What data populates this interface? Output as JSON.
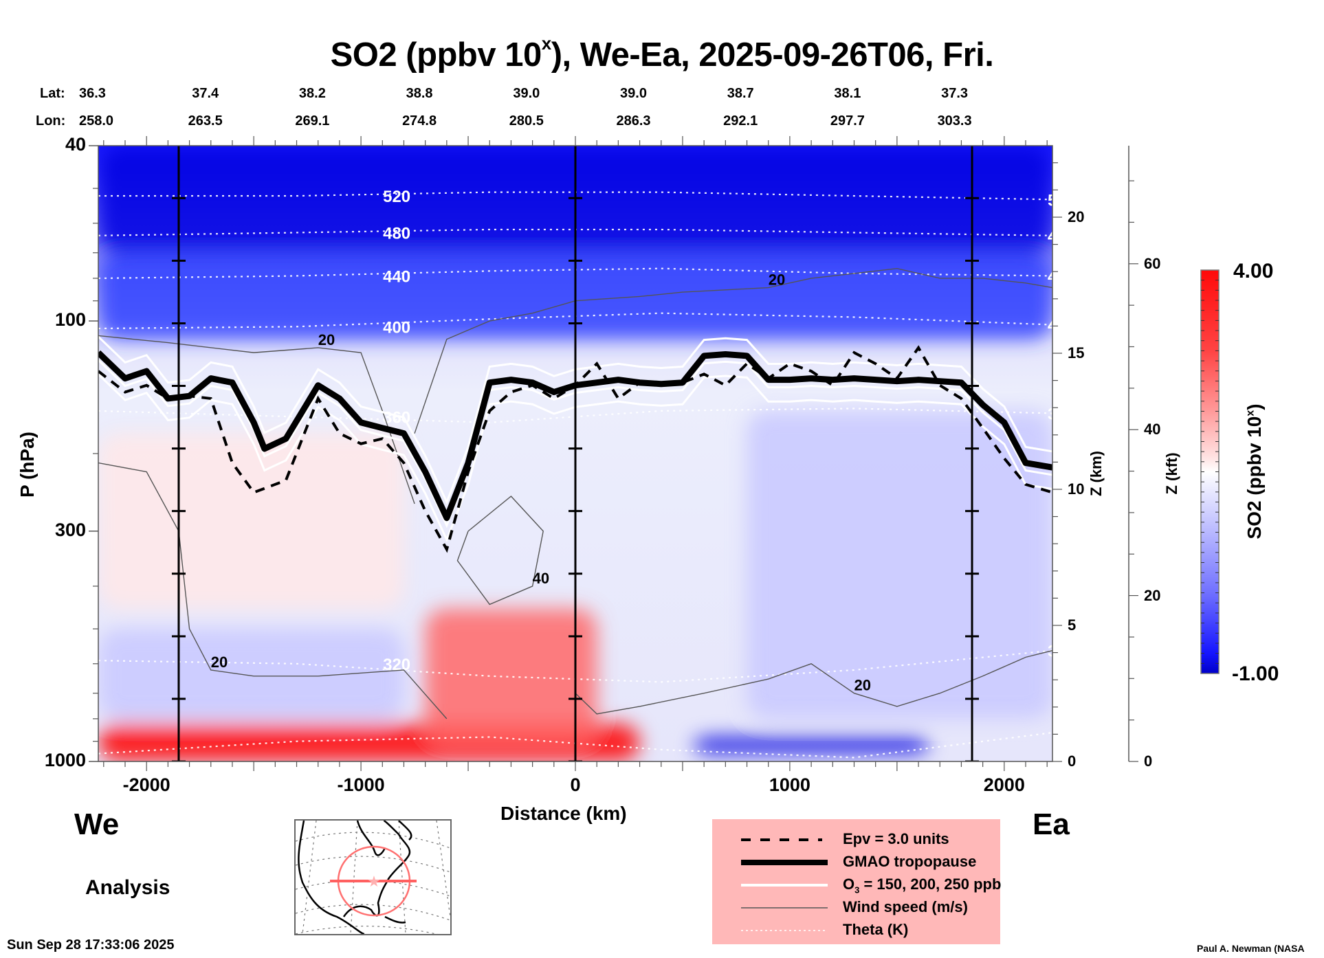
{
  "chart_data": {
    "type": "heatmap",
    "title": "SO2 (ppbv 10",
    "title_sup": "x",
    "title_rest": "), We-Ea, 2025-09-26T06, Fri.",
    "xlabel": "Distance (km)",
    "ylabel": "P (hPa)",
    "xlim": [
      -2225,
      2225
    ],
    "ylim_hpa": [
      1000,
      40
    ],
    "y_scale": "log",
    "x_ticks": [
      -2000,
      -1000,
      0,
      1000,
      2000
    ],
    "x_tick_labels": [
      "-2000",
      "-1000",
      "0",
      "1000",
      "2000"
    ],
    "y_ticks": [
      40,
      100,
      300,
      1000
    ],
    "y_tick_labels": [
      "40",
      "100",
      "300",
      "1000"
    ],
    "z_km_axis": {
      "label": "Z (km)",
      "ticks": [
        0,
        5,
        10,
        15,
        20
      ],
      "range_km": [
        0,
        22.4
      ]
    },
    "z_kft_axis": {
      "label": "Z (kft)",
      "ticks": [
        0,
        20,
        40,
        60
      ]
    },
    "lat_label": "Lat:",
    "lon_label": "Lon:",
    "cross_section_points": [
      {
        "lat": "36.3",
        "lon": "258.0"
      },
      {
        "lat": "37.4",
        "lon": "263.5"
      },
      {
        "lat": "38.2",
        "lon": "269.1"
      },
      {
        "lat": "38.8",
        "lon": "274.8"
      },
      {
        "lat": "39.0",
        "lon": "280.5"
      },
      {
        "lat": "39.0",
        "lon": "286.3"
      },
      {
        "lat": "38.7",
        "lon": "292.1"
      },
      {
        "lat": "38.1",
        "lon": "297.7"
      },
      {
        "lat": "37.3",
        "lon": "303.3"
      }
    ],
    "vertical_marker_lines_km": [
      -1850,
      0,
      1850
    ],
    "colorbar": {
      "label": "SO2 (ppbv 10",
      "label_sup": "x",
      "label_rest": ")",
      "min": -1.0,
      "max": 4.0,
      "min_label": "-1.00",
      "max_label": "4.00",
      "colormap": [
        "#0000e0",
        "#3040ff",
        "#8888ff",
        "#c8c8ff",
        "#f4f4ff",
        "#ffffff",
        "#ffe8e8",
        "#ffb0b0",
        "#ff6868",
        "#ff2020",
        "#ff0000"
      ]
    },
    "field_regions": [
      {
        "desc": "upper stratosphere strong blue",
        "x": [
          -2225,
          2225
        ],
        "p": [
          40,
          70
        ],
        "value": -0.8
      },
      {
        "desc": "stratosphere blue gradient",
        "x": [
          -2225,
          2225
        ],
        "p": [
          70,
          110
        ],
        "value": -0.3
      },
      {
        "desc": "west troposphere light red",
        "x": [
          -2225,
          -800
        ],
        "p": [
          180,
          450
        ],
        "value": 1.9
      },
      {
        "desc": "west mid-level blue band",
        "x": [
          -2225,
          -800
        ],
        "p": [
          500,
          800
        ],
        "value": 0.6
      },
      {
        "desc": "boundary layer strong red",
        "x": [
          -2225,
          300
        ],
        "p": [
          820,
          1000
        ],
        "value": 3.8
      },
      {
        "desc": "east troposphere light blue",
        "x": [
          800,
          2225
        ],
        "p": [
          160,
          800
        ],
        "value": 0.7
      },
      {
        "desc": "near-surface red plume",
        "x": [
          -700,
          100
        ],
        "p": [
          450,
          900
        ],
        "value": 2.8
      },
      {
        "desc": "east surface blue pockets",
        "x": [
          550,
          1650
        ],
        "p": [
          880,
          960
        ],
        "value": -0.9
      }
    ],
    "theta_contours": [
      {
        "label": "520",
        "p": [
          52,
          52,
          51,
          51,
          52,
          53
        ]
      },
      {
        "label": "480",
        "p": [
          64,
          63,
          62,
          62,
          63,
          64
        ]
      },
      {
        "label": "440",
        "p": [
          80,
          79,
          77,
          76,
          78,
          79
        ]
      },
      {
        "label": "400",
        "p": [
          104,
          103,
          99,
          96,
          98,
          102
        ]
      },
      {
        "label": "360",
        "p": [
          160,
          165,
          170,
          160,
          158,
          162
        ]
      },
      {
        "label": "320",
        "p": [
          590,
          600,
          640,
          660,
          620,
          560
        ]
      },
      {
        "label": "",
        "p": [
          960,
          900,
          880,
          940,
          980,
          860
        ]
      }
    ],
    "theta_x": [
      -2225,
      -1300,
      -400,
      400,
      1300,
      2225
    ],
    "tropopause_x": [
      -2225,
      -2100,
      -2000,
      -1900,
      -1800,
      -1700,
      -1600,
      -1500,
      -1450,
      -1350,
      -1200,
      -1100,
      -1000,
      -900,
      -800,
      -700,
      -600,
      -500,
      -400,
      -300,
      -200,
      -100,
      0,
      100,
      200,
      300,
      400,
      500,
      600,
      700,
      800,
      900,
      1000,
      1100,
      1200,
      1300,
      1400,
      1500,
      1600,
      1700,
      1800,
      1900,
      2000,
      2100,
      2225
    ],
    "tropopause_p": [
      118,
      135,
      130,
      150,
      148,
      135,
      138,
      170,
      195,
      185,
      140,
      150,
      170,
      175,
      180,
      220,
      280,
      210,
      138,
      136,
      138,
      145,
      140,
      138,
      136,
      138,
      139,
      138,
      120,
      119,
      120,
      136,
      136,
      135,
      136,
      135,
      136,
      137,
      136,
      137,
      138,
      155,
      170,
      210,
      215
    ],
    "epv_x": [
      -2225,
      -2100,
      -2000,
      -1900,
      -1800,
      -1700,
      -1600,
      -1500,
      -1450,
      -1350,
      -1200,
      -1100,
      -1000,
      -900,
      -800,
      -700,
      -600,
      -500,
      -400,
      -300,
      -200,
      -100,
      0,
      100,
      200,
      300,
      400,
      500,
      600,
      700,
      800,
      900,
      1000,
      1100,
      1200,
      1300,
      1400,
      1500,
      1600,
      1700,
      1800,
      1900,
      2000,
      2100,
      2225
    ],
    "epv_p": [
      130,
      145,
      140,
      150,
      148,
      150,
      210,
      245,
      240,
      230,
      150,
      180,
      190,
      185,
      210,
      270,
      330,
      220,
      160,
      145,
      140,
      150,
      140,
      125,
      150,
      138,
      140,
      138,
      132,
      140,
      125,
      135,
      125,
      130,
      140,
      118,
      125,
      135,
      115,
      140,
      150,
      175,
      205,
      235,
      245
    ],
    "wind_contours": [
      {
        "label": "20",
        "x": [
          -2225,
          -1900,
          -1500,
          -1200,
          -1000,
          -900,
          -750
        ],
        "p": [
          108,
          112,
          118,
          115,
          118,
          160,
          260
        ]
      },
      {
        "label": "20",
        "x": [
          -750,
          -600,
          -400,
          -200,
          0,
          300,
          500,
          700,
          900,
          1100,
          1300,
          1500,
          1700,
          1900,
          2100,
          2225
        ],
        "p": [
          180,
          110,
          100,
          96,
          90,
          88,
          86,
          85,
          84,
          80,
          78,
          76,
          80,
          80,
          82,
          84
        ]
      },
      {
        "label": "20",
        "x": [
          -2225,
          -2000,
          -1850,
          -1800,
          -1700,
          -1500,
          -1200,
          -800,
          -600
        ],
        "p": [
          210,
          220,
          300,
          500,
          620,
          640,
          640,
          620,
          800
        ]
      },
      {
        "label": "40",
        "x": [
          -500,
          -300,
          -150,
          -200,
          -400,
          -550,
          -500
        ],
        "p": [
          300,
          250,
          300,
          400,
          440,
          350,
          300
        ]
      },
      {
        "label": "20",
        "x": [
          0,
          100,
          300,
          600,
          900,
          1100,
          1300,
          1500,
          1700,
          1900,
          2100,
          2225
        ],
        "p": [
          700,
          780,
          750,
          700,
          650,
          600,
          700,
          750,
          700,
          640,
          580,
          560
        ]
      }
    ]
  },
  "labels": {
    "west": "We",
    "east": "Ea",
    "analysis": "Analysis",
    "timestamp": "Sun Sep 28 17:33:06 2025",
    "credit": "Paul A. Newman (NASA"
  },
  "legend": {
    "items": [
      {
        "style": "dashed",
        "label": "Epv = 3.0 units"
      },
      {
        "style": "thick",
        "label": "GMAO tropopause"
      },
      {
        "style": "white",
        "label": "O",
        "sub": "3",
        "rest": " = 150, 200, 250 ppb"
      },
      {
        "style": "thin",
        "label": "Wind speed (m/s)"
      },
      {
        "style": "dotted",
        "label": "Theta (K)"
      }
    ]
  },
  "colors": {
    "legend_bg": "#ffb8b8",
    "map_track": "#ff7070"
  }
}
